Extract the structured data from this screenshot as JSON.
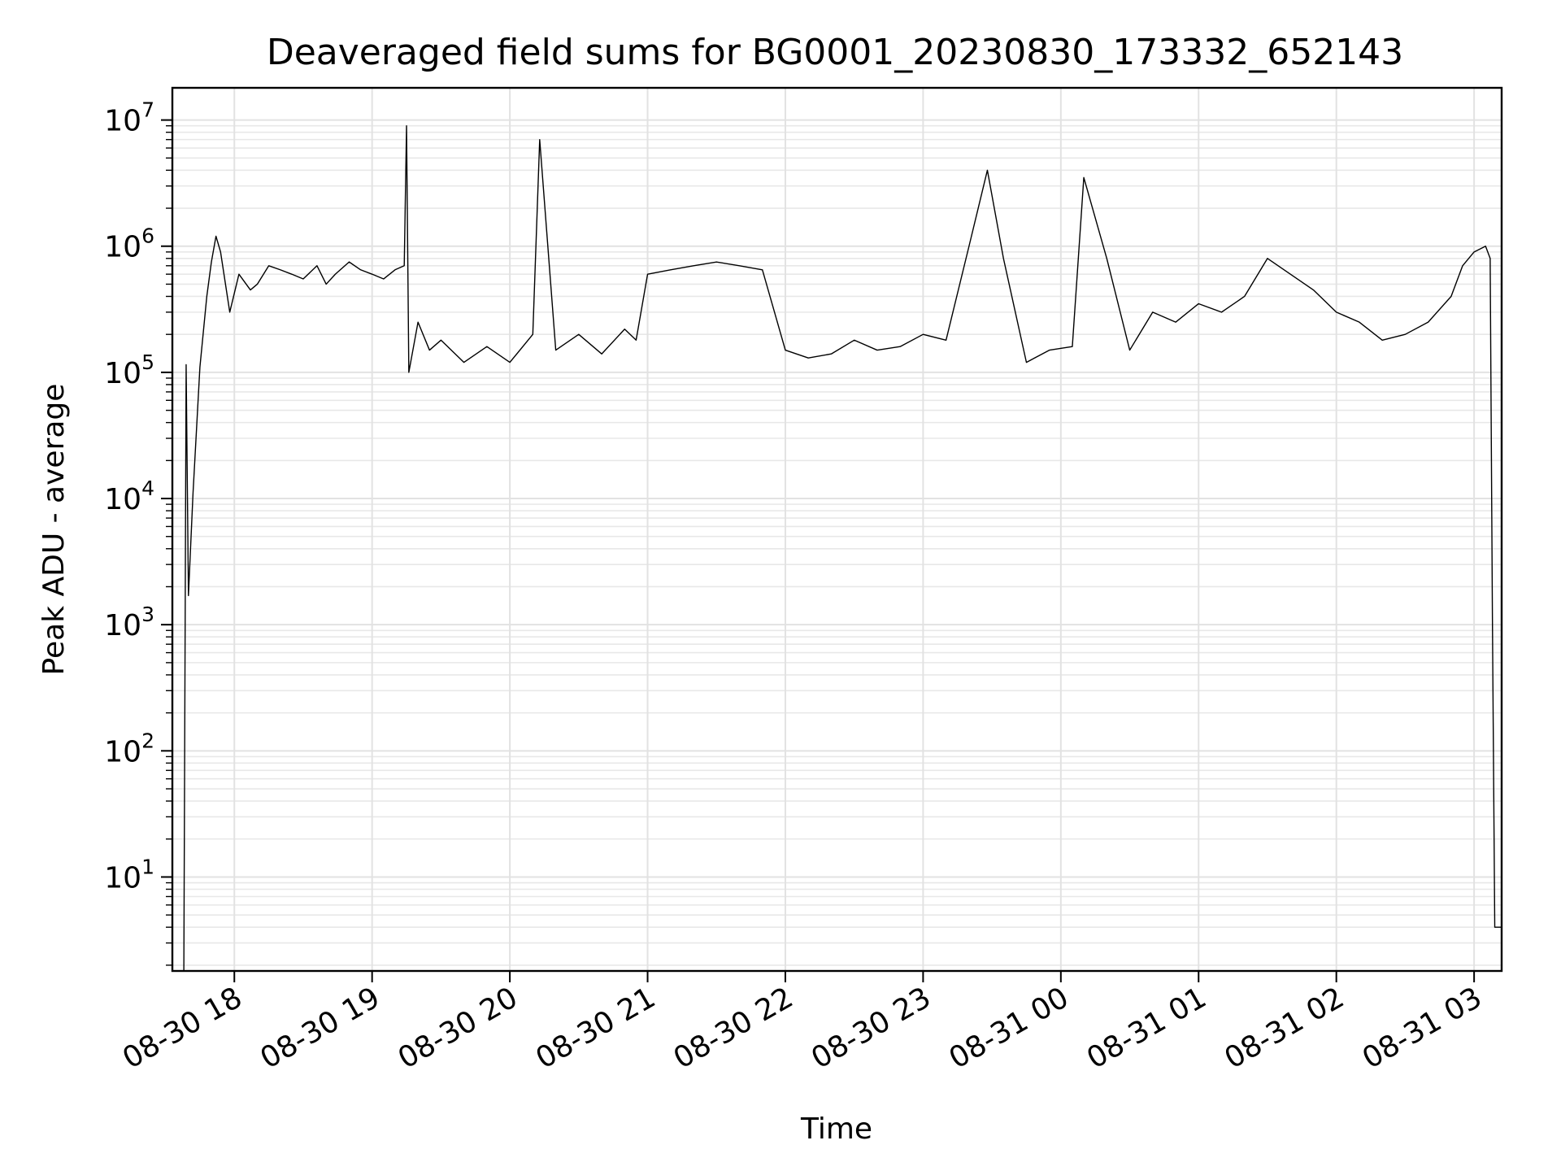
{
  "chart_data": {
    "type": "line",
    "title": "Deaveraged field sums for BG0001_20230830_173332_652143",
    "xlabel": "Time",
    "ylabel": "Peak ADU - average",
    "yscale": "log",
    "ylim": [
      1.8,
      18000000
    ],
    "xlim": [
      "2023-08-30 17:33",
      "2023-08-31 03:12"
    ],
    "grid": true,
    "line_color": "#000000",
    "y_ticks": [
      {
        "exp": "1",
        "value": 10
      },
      {
        "exp": "2",
        "value": 100
      },
      {
        "exp": "3",
        "value": 1000
      },
      {
        "exp": "4",
        "value": 10000
      },
      {
        "exp": "5",
        "value": 100000
      },
      {
        "exp": "6",
        "value": 1000000
      },
      {
        "exp": "7",
        "value": 10000000
      }
    ],
    "x_ticks": [
      {
        "label": "08-30 18",
        "time": "2023-08-30 18:00"
      },
      {
        "label": "08-30 19",
        "time": "2023-08-30 19:00"
      },
      {
        "label": "08-30 20",
        "time": "2023-08-30 20:00"
      },
      {
        "label": "08-30 21",
        "time": "2023-08-30 21:00"
      },
      {
        "label": "08-30 22",
        "time": "2023-08-30 22:00"
      },
      {
        "label": "08-30 23",
        "time": "2023-08-30 23:00"
      },
      {
        "label": "08-31 00",
        "time": "2023-08-31 00:00"
      },
      {
        "label": "08-31 01",
        "time": "2023-08-31 01:00"
      },
      {
        "label": "08-31 02",
        "time": "2023-08-31 02:00"
      },
      {
        "label": "08-31 03",
        "time": "2023-08-31 03:00"
      }
    ],
    "series": [
      {
        "x": [
          "2023-08-30 17:38",
          "2023-08-30 17:39",
          "2023-08-30 17:40",
          "2023-08-30 17:42",
          "2023-08-30 17:45",
          "2023-08-30 17:48",
          "2023-08-30 17:50",
          "2023-08-30 17:52",
          "2023-08-30 17:54",
          "2023-08-30 17:58",
          "2023-08-30 18:02",
          "2023-08-30 18:07",
          "2023-08-30 18:10",
          "2023-08-30 18:15",
          "2023-08-30 18:20",
          "2023-08-30 18:25",
          "2023-08-30 18:30",
          "2023-08-30 18:36",
          "2023-08-30 18:40",
          "2023-08-30 18:44",
          "2023-08-30 18:50",
          "2023-08-30 18:55",
          "2023-08-30 19:00",
          "2023-08-30 19:05",
          "2023-08-30 19:10",
          "2023-08-30 19:14",
          "2023-08-30 19:15",
          "2023-08-30 19:16",
          "2023-08-30 19:20",
          "2023-08-30 19:25",
          "2023-08-30 19:30",
          "2023-08-30 19:40",
          "2023-08-30 19:50",
          "2023-08-30 20:00",
          "2023-08-30 20:10",
          "2023-08-30 20:13",
          "2023-08-30 20:20",
          "2023-08-30 20:30",
          "2023-08-30 20:40",
          "2023-08-30 20:50",
          "2023-08-30 20:55",
          "2023-08-30 21:00",
          "2023-08-30 21:10",
          "2023-08-30 21:20",
          "2023-08-30 21:30",
          "2023-08-30 21:40",
          "2023-08-30 21:50",
          "2023-08-30 22:00",
          "2023-08-30 22:10",
          "2023-08-30 22:20",
          "2023-08-30 22:30",
          "2023-08-30 22:40",
          "2023-08-30 22:50",
          "2023-08-30 23:00",
          "2023-08-30 23:10",
          "2023-08-30 23:20",
          "2023-08-30 23:28",
          "2023-08-30 23:35",
          "2023-08-30 23:45",
          "2023-08-30 23:55",
          "2023-08-31 00:05",
          "2023-08-31 00:10",
          "2023-08-31 00:20",
          "2023-08-31 00:30",
          "2023-08-31 00:40",
          "2023-08-31 00:50",
          "2023-08-31 01:00",
          "2023-08-31 01:10",
          "2023-08-31 01:20",
          "2023-08-31 01:30",
          "2023-08-31 01:40",
          "2023-08-31 01:50",
          "2023-08-31 02:00",
          "2023-08-31 02:10",
          "2023-08-31 02:20",
          "2023-08-31 02:30",
          "2023-08-31 02:40",
          "2023-08-31 02:50",
          "2023-08-31 02:55",
          "2023-08-31 03:00",
          "2023-08-31 03:05",
          "2023-08-31 03:07",
          "2023-08-31 03:08",
          "2023-08-31 03:09",
          "2023-08-31 03:12"
        ],
        "y": [
          1.8,
          115000,
          1700,
          11000,
          110000,
          400000,
          750000,
          1200000,
          900000,
          300000,
          600000,
          450000,
          500000,
          700000,
          650000,
          600000,
          550000,
          700000,
          500000,
          600000,
          750000,
          650000,
          600000,
          550000,
          650000,
          700000,
          9000000,
          100000,
          250000,
          150000,
          180000,
          120000,
          160000,
          120000,
          200000,
          7000000,
          150000,
          200000,
          140000,
          220000,
          180000,
          600000,
          650000,
          700000,
          750000,
          700000,
          650000,
          150000,
          130000,
          140000,
          180000,
          150000,
          160000,
          200000,
          180000,
          1000000,
          4000000,
          800000,
          120000,
          150000,
          160000,
          3500000,
          800000,
          150000,
          300000,
          250000,
          350000,
          300000,
          400000,
          800000,
          600000,
          450000,
          300000,
          250000,
          180000,
          200000,
          250000,
          400000,
          700000,
          900000,
          1000000,
          800000,
          1000,
          4,
          4
        ]
      }
    ]
  }
}
